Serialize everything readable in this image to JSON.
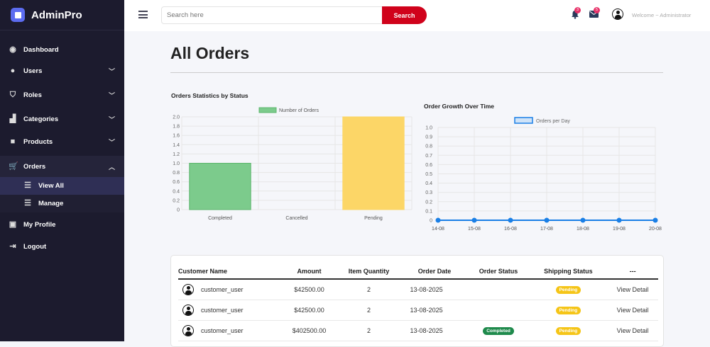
{
  "brand": "AdminPro",
  "sidebar": {
    "items": [
      {
        "label": "Dashboard",
        "icon": "gauge-icon"
      },
      {
        "label": "Users",
        "icon": "users-icon"
      },
      {
        "label": "Roles",
        "icon": "shield-icon"
      },
      {
        "label": "Categories",
        "icon": "boxes-icon"
      },
      {
        "label": "Products",
        "icon": "box-icon"
      },
      {
        "label": "Orders",
        "icon": "cart-icon"
      },
      {
        "label": "View All",
        "icon": "list-icon"
      },
      {
        "label": "Manage",
        "icon": "checklist-icon"
      },
      {
        "label": "My Profile",
        "icon": "id-card-icon"
      },
      {
        "label": "Logout",
        "icon": "logout-icon"
      }
    ]
  },
  "header": {
    "search_placeholder": "Search here",
    "search_button": "Search",
    "notifications": "3",
    "messages": "5",
    "welcome": "Welcome ~ Administrator"
  },
  "page_title": "All Orders",
  "chart_data": [
    {
      "type": "bar",
      "title": "Orders Statistics by Status",
      "legend": "Number of Orders",
      "legend_position": "top",
      "categories": [
        "Completed",
        "Cancelled",
        "Pending"
      ],
      "values": [
        1,
        0,
        2
      ],
      "colors": [
        "#7ccb8c",
        "#f08080",
        "#fcd667"
      ],
      "ylim": [
        0,
        2
      ],
      "yticks": [
        "0",
        "0.2",
        "0.4",
        "0.6",
        "0.8",
        "1.0",
        "1.2",
        "1.4",
        "1.6",
        "1.8",
        "2.0"
      ],
      "grid": true
    },
    {
      "type": "line",
      "title": "Order Growth Over Time",
      "legend": "Orders per Day",
      "legend_position": "top",
      "x": [
        "14-08",
        "15-08",
        "16-08",
        "17-08",
        "18-08",
        "19-08",
        "20-08"
      ],
      "values": [
        0,
        0,
        0,
        0,
        0,
        0,
        0
      ],
      "color": "#1a7fe6",
      "ylim": [
        0,
        1
      ],
      "yticks": [
        "0",
        "0.1",
        "0.2",
        "0.3",
        "0.4",
        "0.5",
        "0.6",
        "0.7",
        "0.8",
        "0.9",
        "1.0"
      ],
      "grid": true
    }
  ],
  "table": {
    "headers": [
      "Customer Name",
      "Amount",
      "Item Quantity",
      "Order Date",
      "Order Status",
      "Shipping Status",
      "---"
    ],
    "rows": [
      {
        "customer": "customer_user",
        "amount": "$42500.00",
        "qty": "2",
        "date": "13-08-2025",
        "order_status": "",
        "shipping": "Pending",
        "action": "View Detail"
      },
      {
        "customer": "customer_user",
        "amount": "$42500.00",
        "qty": "2",
        "date": "13-08-2025",
        "order_status": "",
        "shipping": "Pending",
        "action": "View Detail"
      },
      {
        "customer": "customer_user",
        "amount": "$402500.00",
        "qty": "2",
        "date": "13-08-2025",
        "order_status": "Completed",
        "shipping": "Pending",
        "action": "View Detail"
      }
    ]
  },
  "colors": {
    "sidebar": "#1c1b2e",
    "accent": "#d0021b",
    "completed": "#1f8a4c",
    "pending": "#f5c518"
  }
}
